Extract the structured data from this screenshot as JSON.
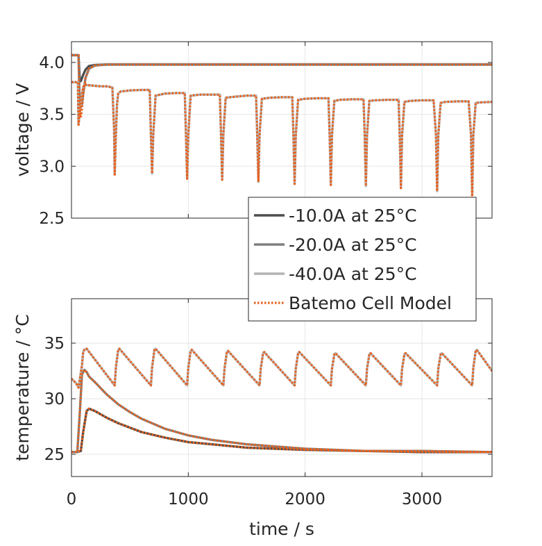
{
  "chart_data": [
    {
      "type": "line",
      "panel": "voltage",
      "ylabel": "voltage / V",
      "xlim": [
        0,
        3600
      ],
      "ylim": [
        2.5,
        4.2
      ],
      "yticks": [
        "2.5",
        "3.0",
        "3.5",
        "4.0"
      ],
      "grid": true,
      "series": [
        {
          "name": "-10.0A at 25°C",
          "color": "#4d4d4d",
          "style": "solid",
          "x": [
            0,
            30,
            60,
            70,
            80,
            100,
            120,
            150,
            200,
            300,
            500,
            1000,
            2000,
            3000,
            3600
          ],
          "y": [
            4.07,
            4.07,
            4.07,
            3.85,
            3.82,
            3.88,
            3.93,
            3.965,
            3.975,
            3.98,
            3.98,
            3.98,
            3.98,
            3.98,
            3.98
          ]
        },
        {
          "name": "-20.0A at 25°C",
          "color": "#7f7f7f",
          "style": "solid",
          "x": [
            0,
            30,
            60,
            70,
            80,
            90,
            100,
            120,
            150,
            200,
            300,
            500,
            1000,
            2000,
            3000,
            3600
          ],
          "y": [
            4.07,
            4.07,
            4.07,
            3.62,
            3.58,
            3.6,
            3.7,
            3.85,
            3.94,
            3.97,
            3.98,
            3.98,
            3.98,
            3.98,
            3.98,
            3.98
          ]
        },
        {
          "name": "-40.0A at 25°C",
          "color": "#b3b3b3",
          "style": "solid",
          "x": [
            0,
            40,
            55,
            60,
            70,
            80,
            90,
            100,
            110,
            120,
            130,
            140,
            150,
            200,
            250,
            300,
            350,
            365,
            370,
            380,
            390,
            400,
            420,
            500,
            600,
            670,
            680,
            690,
            700,
            720,
            800,
            900,
            970,
            980,
            990,
            1000,
            1020,
            1100,
            1200,
            1270,
            1280,
            1290,
            1300,
            1320,
            1400,
            1500,
            1580,
            1590,
            1600,
            1610,
            1630,
            1700,
            1800,
            1890,
            1900,
            1910,
            1920,
            1940,
            2000,
            2100,
            2200,
            2210,
            2220,
            2230,
            2250,
            2300,
            2400,
            2500,
            2510,
            2520,
            2530,
            2550,
            2600,
            2700,
            2800,
            2810,
            2820,
            2830,
            2850,
            2900,
            3000,
            3100,
            3120,
            3130,
            3140,
            3160,
            3200,
            3300,
            3400,
            3420,
            3430,
            3440,
            3460,
            3500,
            3600
          ],
          "y": [
            3.81,
            3.81,
            3.81,
            3.4,
            3.5,
            3.58,
            3.7,
            3.76,
            3.78,
            3.79,
            3.78,
            3.78,
            3.78,
            3.775,
            3.77,
            3.77,
            3.76,
            3.35,
            2.92,
            3.3,
            3.6,
            3.7,
            3.72,
            3.73,
            3.735,
            3.735,
            3.3,
            2.93,
            3.3,
            3.68,
            3.7,
            3.705,
            3.705,
            3.3,
            2.88,
            3.3,
            3.68,
            3.69,
            3.69,
            3.69,
            3.3,
            2.87,
            3.3,
            3.66,
            3.67,
            3.68,
            3.68,
            3.3,
            2.85,
            3.3,
            3.65,
            3.66,
            3.665,
            3.665,
            3.3,
            2.83,
            3.3,
            3.64,
            3.65,
            3.655,
            3.655,
            3.3,
            2.82,
            3.3,
            3.63,
            3.64,
            3.645,
            3.645,
            3.3,
            2.81,
            3.3,
            3.63,
            3.635,
            3.64,
            3.64,
            3.3,
            2.79,
            3.3,
            3.62,
            3.63,
            3.635,
            3.635,
            3.3,
            2.76,
            3.3,
            3.61,
            3.62,
            3.625,
            3.625,
            3.3,
            2.73,
            3.3,
            3.61,
            3.615,
            3.62
          ]
        },
        {
          "name": "Batemo Cell Model",
          "color": "#e8601c",
          "style": "dotted",
          "x": [
            0,
            40,
            55,
            60,
            70,
            80,
            90,
            100,
            110,
            120,
            130,
            140,
            150,
            200,
            250,
            300,
            350,
            365,
            370,
            380,
            390,
            400,
            420,
            500,
            600,
            670,
            680,
            690,
            700,
            720,
            800,
            900,
            970,
            980,
            990,
            1000,
            1020,
            1100,
            1200,
            1270,
            1280,
            1290,
            1300,
            1320,
            1400,
            1500,
            1580,
            1590,
            1600,
            1610,
            1630,
            1700,
            1800,
            1890,
            1900,
            1910,
            1920,
            1940,
            2000,
            2100,
            2200,
            2210,
            2220,
            2230,
            2250,
            2300,
            2400,
            2500,
            2510,
            2520,
            2530,
            2550,
            2600,
            2700,
            2800,
            2810,
            2820,
            2830,
            2850,
            2900,
            3000,
            3100,
            3120,
            3130,
            3140,
            3160,
            3200,
            3300,
            3400,
            3420,
            3430,
            3440,
            3460,
            3500,
            3600
          ],
          "y": [
            3.81,
            3.81,
            3.81,
            3.4,
            3.5,
            3.58,
            3.7,
            3.76,
            3.78,
            3.79,
            3.78,
            3.78,
            3.78,
            3.775,
            3.77,
            3.77,
            3.76,
            3.35,
            2.92,
            3.3,
            3.6,
            3.7,
            3.72,
            3.73,
            3.735,
            3.735,
            3.3,
            2.93,
            3.3,
            3.68,
            3.7,
            3.705,
            3.705,
            3.3,
            2.88,
            3.3,
            3.68,
            3.69,
            3.69,
            3.69,
            3.3,
            2.87,
            3.3,
            3.66,
            3.67,
            3.68,
            3.68,
            3.3,
            2.85,
            3.3,
            3.65,
            3.66,
            3.665,
            3.665,
            3.3,
            2.83,
            3.3,
            3.64,
            3.65,
            3.655,
            3.655,
            3.3,
            2.82,
            3.3,
            3.63,
            3.64,
            3.645,
            3.645,
            3.3,
            2.81,
            3.3,
            3.63,
            3.635,
            3.64,
            3.64,
            3.3,
            2.79,
            3.3,
            3.62,
            3.63,
            3.635,
            3.635,
            3.3,
            2.76,
            3.3,
            3.61,
            3.62,
            3.625,
            3.625,
            3.3,
            2.69,
            3.3,
            3.61,
            3.615,
            3.62
          ]
        },
        {
          "name": "",
          "color": "#e8601c",
          "style": "dotted",
          "x": [
            0,
            30,
            60,
            70,
            80,
            90,
            100,
            120,
            150,
            200,
            300,
            500,
            1000,
            2000,
            3000,
            3600
          ],
          "y": [
            4.07,
            4.07,
            4.07,
            3.52,
            3.47,
            3.55,
            3.68,
            3.85,
            3.94,
            3.97,
            3.98,
            3.98,
            3.98,
            3.98,
            3.98,
            3.98
          ]
        }
      ]
    },
    {
      "type": "line",
      "panel": "temperature",
      "xlabel": "time / s",
      "ylabel": "temperature / °C",
      "xlim": [
        0,
        3600
      ],
      "ylim": [
        23,
        39
      ],
      "xticks": [
        "0",
        "1000",
        "2000",
        "3000"
      ],
      "yticks": [
        "25",
        "30",
        "35"
      ],
      "grid": true,
      "series": [
        {
          "name": "-10.0A at 25°C",
          "color": "#4d4d4d",
          "style": "solid",
          "x": [
            0,
            50,
            80,
            100,
            130,
            150,
            200,
            300,
            400,
            500,
            600,
            800,
            1000,
            1200,
            1500,
            2000,
            2500,
            3000,
            3600
          ],
          "y": [
            25.2,
            25.2,
            25.3,
            27.0,
            28.9,
            29.1,
            28.9,
            28.3,
            27.8,
            27.4,
            27.0,
            26.5,
            26.1,
            25.9,
            25.6,
            25.4,
            25.3,
            25.2,
            25.2
          ]
        },
        {
          "name": "-20.0A at 25°C",
          "color": "#7f7f7f",
          "style": "solid",
          "x": [
            0,
            50,
            70,
            90,
            110,
            130,
            150,
            200,
            300,
            400,
            500,
            600,
            800,
            1000,
            1200,
            1500,
            2000,
            2500,
            3000,
            3600
          ],
          "y": [
            25.2,
            25.2,
            28.5,
            32.2,
            32.6,
            32.4,
            32.0,
            31.5,
            30.4,
            29.5,
            28.8,
            28.2,
            27.3,
            26.7,
            26.3,
            25.9,
            25.5,
            25.3,
            25.3,
            25.2
          ]
        },
        {
          "name": "-40.0A at 25°C",
          "color": "#b3b3b3",
          "style": "solid",
          "x": [
            0,
            40,
            60,
            90,
            100,
            110,
            130,
            370,
            380,
            400,
            410,
            680,
            690,
            710,
            720,
            990,
            1000,
            1020,
            1030,
            1300,
            1310,
            1330,
            1340,
            1610,
            1620,
            1640,
            1650,
            1910,
            1920,
            1940,
            1950,
            2220,
            2230,
            2250,
            2260,
            2520,
            2530,
            2550,
            2560,
            2820,
            2830,
            2850,
            2860,
            3130,
            3140,
            3160,
            3170,
            3430,
            3440,
            3460,
            3470,
            3600
          ],
          "y": [
            31.8,
            31.4,
            31.0,
            33.0,
            34.2,
            34.4,
            34.5,
            31.2,
            32.8,
            34.4,
            34.5,
            31.2,
            32.8,
            34.4,
            34.5,
            31.2,
            32.8,
            34.3,
            34.4,
            31.2,
            32.7,
            34.2,
            34.3,
            31.2,
            32.7,
            34.1,
            34.2,
            31.2,
            32.7,
            34.1,
            34.2,
            31.2,
            32.7,
            34.0,
            34.1,
            31.2,
            32.7,
            34.0,
            34.1,
            31.2,
            32.7,
            34.0,
            34.1,
            31.2,
            32.7,
            34.0,
            34.1,
            31.2,
            32.8,
            34.3,
            34.4,
            32.5
          ]
        },
        {
          "name": "Batemo Cell Model",
          "color": "#e8601c",
          "style": "dotted",
          "x": [
            0,
            40,
            60,
            90,
            100,
            110,
            130,
            370,
            380,
            400,
            410,
            680,
            690,
            710,
            720,
            990,
            1000,
            1020,
            1030,
            1300,
            1310,
            1330,
            1340,
            1610,
            1620,
            1640,
            1650,
            1910,
            1920,
            1940,
            1950,
            2220,
            2230,
            2250,
            2260,
            2520,
            2530,
            2550,
            2560,
            2820,
            2830,
            2850,
            2860,
            3130,
            3140,
            3160,
            3170,
            3430,
            3440,
            3460,
            3470,
            3600
          ],
          "y": [
            31.8,
            31.4,
            31.0,
            33.0,
            34.2,
            34.4,
            34.5,
            31.2,
            32.8,
            34.4,
            34.5,
            31.2,
            32.8,
            34.4,
            34.5,
            31.2,
            32.8,
            34.3,
            34.4,
            31.2,
            32.7,
            34.2,
            34.3,
            31.2,
            32.7,
            34.1,
            34.2,
            31.2,
            32.7,
            34.1,
            34.2,
            31.2,
            32.7,
            34.0,
            34.1,
            31.2,
            32.7,
            34.0,
            34.1,
            31.2,
            32.7,
            34.0,
            34.1,
            31.2,
            32.7,
            34.0,
            34.1,
            31.2,
            32.8,
            34.3,
            34.4,
            32.5
          ]
        },
        {
          "name": "",
          "color": "#e8601c",
          "style": "dotted",
          "x": [
            0,
            50,
            70,
            90,
            110,
            130,
            150,
            200,
            300,
            400,
            500,
            600,
            800,
            1000,
            1200,
            1500,
            2000,
            2500,
            3000,
            3600
          ],
          "y": [
            25.2,
            25.2,
            28.5,
            32.2,
            32.6,
            32.4,
            32.0,
            31.5,
            30.4,
            29.5,
            28.8,
            28.2,
            27.3,
            26.7,
            26.3,
            25.9,
            25.5,
            25.3,
            25.3,
            25.2
          ]
        },
        {
          "name": "",
          "color": "#e8601c",
          "style": "dotted",
          "x": [
            0,
            50,
            80,
            100,
            130,
            150,
            200,
            300,
            400,
            500,
            600,
            800,
            1000,
            1200,
            1500,
            2000,
            2500,
            3000,
            3600
          ],
          "y": [
            25.2,
            25.2,
            25.3,
            27.0,
            28.9,
            29.1,
            28.9,
            28.3,
            27.8,
            27.4,
            27.0,
            26.5,
            26.1,
            25.9,
            25.6,
            25.4,
            25.3,
            25.2,
            25.2
          ]
        }
      ]
    }
  ],
  "legend": {
    "placement": "between panels, right",
    "entries": [
      {
        "label": "-10.0A at 25°C",
        "color": "#4d4d4d",
        "style": "solid"
      },
      {
        "label": "-20.0A at 25°C",
        "color": "#7f7f7f",
        "style": "solid"
      },
      {
        "label": "-40.0A at 25°C",
        "color": "#b3b3b3",
        "style": "solid"
      },
      {
        "label": "Batemo Cell Model",
        "color": "#e8601c",
        "style": "dotted"
      }
    ]
  }
}
